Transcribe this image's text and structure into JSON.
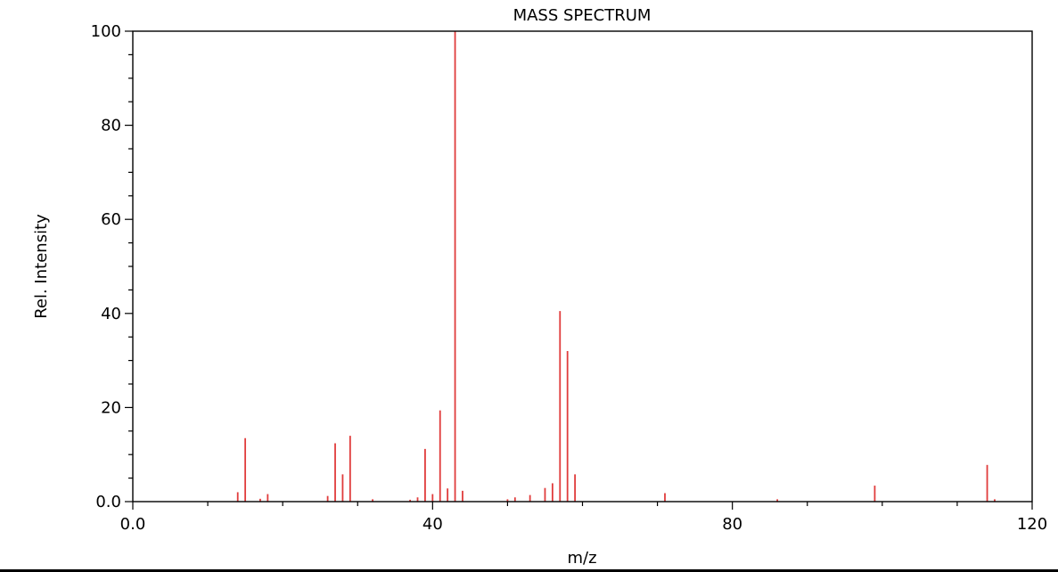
{
  "chart_data": {
    "type": "bar",
    "title": "MASS SPECTRUM",
    "xlabel": "m/z",
    "ylabel": "Rel. Intensity",
    "xlim": [
      0,
      120
    ],
    "ylim": [
      0,
      100
    ],
    "x_ticks": [
      0,
      40,
      80,
      120
    ],
    "x_tick_labels": [
      "0.0",
      "40",
      "80",
      "120"
    ],
    "y_ticks": [
      0,
      20,
      40,
      60,
      80,
      100
    ],
    "y_tick_labels": [
      "0.0",
      "20",
      "40",
      "60",
      "80",
      "100"
    ],
    "grid": false,
    "bar_color": "#e03c3c",
    "peaks": [
      {
        "mz": 14,
        "intensity": 2
      },
      {
        "mz": 15,
        "intensity": 13.5
      },
      {
        "mz": 17,
        "intensity": 0.6
      },
      {
        "mz": 18,
        "intensity": 1.6
      },
      {
        "mz": 26,
        "intensity": 1.2
      },
      {
        "mz": 27,
        "intensity": 12.4
      },
      {
        "mz": 28,
        "intensity": 5.8
      },
      {
        "mz": 29,
        "intensity": 14
      },
      {
        "mz": 32,
        "intensity": 0.5
      },
      {
        "mz": 37,
        "intensity": 0.4
      },
      {
        "mz": 38,
        "intensity": 0.9
      },
      {
        "mz": 39,
        "intensity": 11.2
      },
      {
        "mz": 40,
        "intensity": 1.6
      },
      {
        "mz": 41,
        "intensity": 19.4
      },
      {
        "mz": 42,
        "intensity": 2.8
      },
      {
        "mz": 43,
        "intensity": 100
      },
      {
        "mz": 44,
        "intensity": 2.3
      },
      {
        "mz": 50,
        "intensity": 0.5
      },
      {
        "mz": 51,
        "intensity": 0.9
      },
      {
        "mz": 53,
        "intensity": 1.4
      },
      {
        "mz": 55,
        "intensity": 2.9
      },
      {
        "mz": 56,
        "intensity": 3.9
      },
      {
        "mz": 57,
        "intensity": 40.5
      },
      {
        "mz": 58,
        "intensity": 32
      },
      {
        "mz": 59,
        "intensity": 5.8
      },
      {
        "mz": 71,
        "intensity": 1.8
      },
      {
        "mz": 86,
        "intensity": 0.5
      },
      {
        "mz": 99,
        "intensity": 3.4
      },
      {
        "mz": 114,
        "intensity": 7.8
      },
      {
        "mz": 115,
        "intensity": 0.5
      }
    ]
  }
}
